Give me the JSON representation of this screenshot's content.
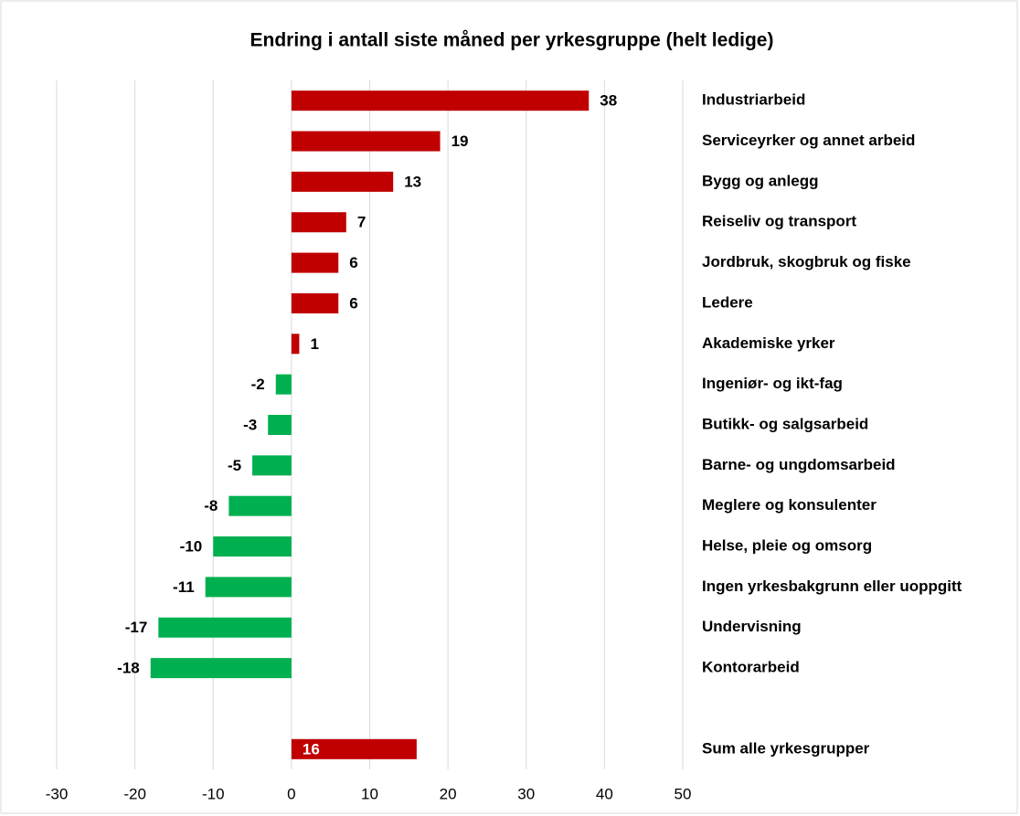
{
  "chart_data": {
    "type": "hbar",
    "title": "Endring i antall siste måned per yrkesgruppe (helt ledige)",
    "categories": [
      "Industriarbeid",
      "Serviceyrker og annet arbeid",
      "Bygg og anlegg",
      "Reiseliv og transport",
      "Jordbruk, skogbruk og fiske",
      "Ledere",
      "Akademiske yrker",
      "Ingeniør- og ikt-fag",
      "Butikk- og salgsarbeid",
      "Barne- og ungdomsarbeid",
      "Meglere og konsulenter",
      "Helse, pleie og omsorg",
      "Ingen yrkesbakgrunn eller uoppgitt",
      "Undervisning",
      "Kontorarbeid",
      null,
      "Sum alle yrkesgrupper"
    ],
    "values": [
      38,
      19,
      13,
      7,
      6,
      6,
      1,
      -2,
      -3,
      -5,
      -8,
      -10,
      -11,
      -17,
      -18,
      null,
      16
    ],
    "positive_color": "#c00000",
    "negative_color": "#00b050",
    "xlim": [
      -30,
      50
    ],
    "xticks": [
      -30,
      -20,
      -10,
      0,
      10,
      20,
      30,
      40,
      50
    ],
    "grid": true
  }
}
